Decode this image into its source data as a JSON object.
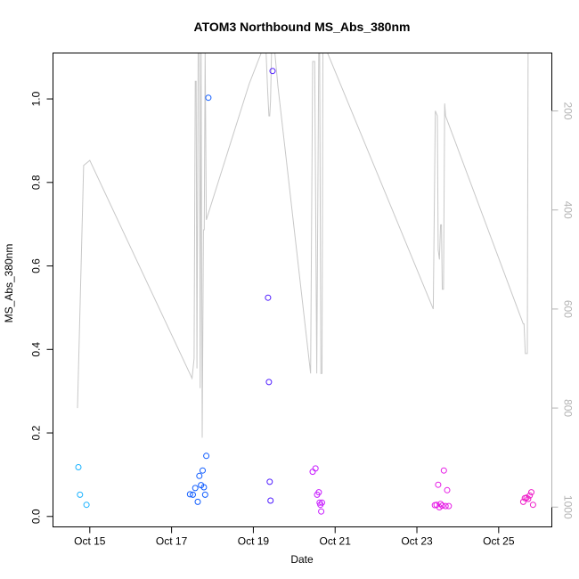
{
  "chart_data": {
    "type": "scatter",
    "title": "ATOM3 Northbound MS_Abs_380nm",
    "xlabel": "Date",
    "ylabel": "MS_Abs_380nm",
    "x_ticks": [
      {
        "label": "Oct 15",
        "day": 15
      },
      {
        "label": "Oct 17",
        "day": 17
      },
      {
        "label": "Oct 19",
        "day": 19
      },
      {
        "label": "Oct 21",
        "day": 21
      },
      {
        "label": "Oct 23",
        "day": 23
      },
      {
        "label": "Oct 25",
        "day": 25
      }
    ],
    "xlim": [
      14.1,
      26.3
    ],
    "ylim": [
      -0.025,
      1.11
    ],
    "y_ticks": [
      "0.0",
      "0.2",
      "0.4",
      "0.6",
      "0.8",
      "1.0"
    ],
    "y_tick_values": [
      0,
      0.2,
      0.4,
      0.6,
      0.8,
      1.0
    ],
    "right_axis": {
      "label": "",
      "ticks": [
        "200",
        "400",
        "600",
        "800",
        "1000"
      ],
      "tick_values": [
        200,
        400,
        600,
        800,
        1000
      ],
      "range": [
        1040,
        83
      ],
      "color": "#b3b3b3"
    },
    "pressure_line": {
      "color": "#c8c8c8",
      "x": [
        14.7,
        14.85,
        15.0,
        17.5,
        17.55,
        17.58,
        17.6,
        17.62,
        17.65,
        17.68,
        17.7,
        17.72,
        17.75,
        17.78,
        17.8,
        17.82,
        17.85,
        18.9,
        19.3,
        19.35,
        19.38,
        19.4,
        19.42,
        19.45,
        19.5,
        19.6,
        20.4,
        20.45,
        20.5,
        20.55,
        20.6,
        20.62,
        20.65,
        20.68,
        20.7,
        20.8,
        23.4,
        23.45,
        23.5,
        23.52,
        23.55,
        23.58,
        23.6,
        23.62,
        23.65,
        23.68,
        23.7,
        25.6,
        25.62,
        25.65,
        25.7,
        25.72,
        25.75,
        25.8
      ],
      "y": [
        800,
        310,
        300,
        740,
        700,
        140,
        140,
        720,
        50,
        50,
        760,
        50,
        860,
        440,
        440,
        80,
        420,
        145,
        60,
        160,
        210,
        210,
        180,
        60,
        60,
        150,
        730,
        100,
        100,
        730,
        60,
        60,
        730,
        730,
        80,
        80,
        600,
        200,
        210,
        480,
        500,
        430,
        430,
        560,
        560,
        185,
        210,
        630,
        630,
        690,
        690,
        50,
        50,
        50
      ]
    },
    "series": [
      {
        "color": "#1ab2ff",
        "x": [
          14.72,
          14.76,
          14.92
        ],
        "y": [
          0.118,
          0.052,
          0.028
        ]
      },
      {
        "color": "#0f5cff",
        "x": [
          17.45,
          17.52,
          17.58,
          17.64,
          17.68,
          17.72,
          17.76,
          17.79,
          17.82,
          17.85,
          17.9
        ],
        "y": [
          0.053,
          0.052,
          0.068,
          0.035,
          0.097,
          0.075,
          0.11,
          0.07,
          0.052,
          0.145,
          1.003
        ]
      },
      {
        "color": "#4f1cff",
        "x": [
          19.36,
          19.38,
          19.4,
          19.42,
          19.47
        ],
        "y": [
          0.524,
          0.322,
          0.083,
          0.038,
          1.067
        ]
      },
      {
        "color": "#c71cff",
        "x": [
          20.45,
          20.52,
          20.56,
          20.6,
          20.62,
          20.64,
          20.66,
          20.68
        ],
        "y": [
          0.107,
          0.115,
          0.052,
          0.058,
          0.033,
          0.028,
          0.012,
          0.033
        ]
      },
      {
        "color": "#e61ce6",
        "x": [
          23.44,
          23.48,
          23.52,
          23.55,
          23.58,
          23.62,
          23.66,
          23.7,
          23.74,
          23.78
        ],
        "y": [
          0.027,
          0.028,
          0.076,
          0.022,
          0.03,
          0.026,
          0.11,
          0.025,
          0.063,
          0.025
        ]
      },
      {
        "color": "#ee1cc8",
        "x": [
          25.6,
          25.64,
          25.68,
          25.72,
          25.76,
          25.8,
          25.84
        ],
        "y": [
          0.035,
          0.044,
          0.045,
          0.042,
          0.05,
          0.058,
          0.028
        ]
      }
    ],
    "grid": false,
    "legend": "none"
  }
}
